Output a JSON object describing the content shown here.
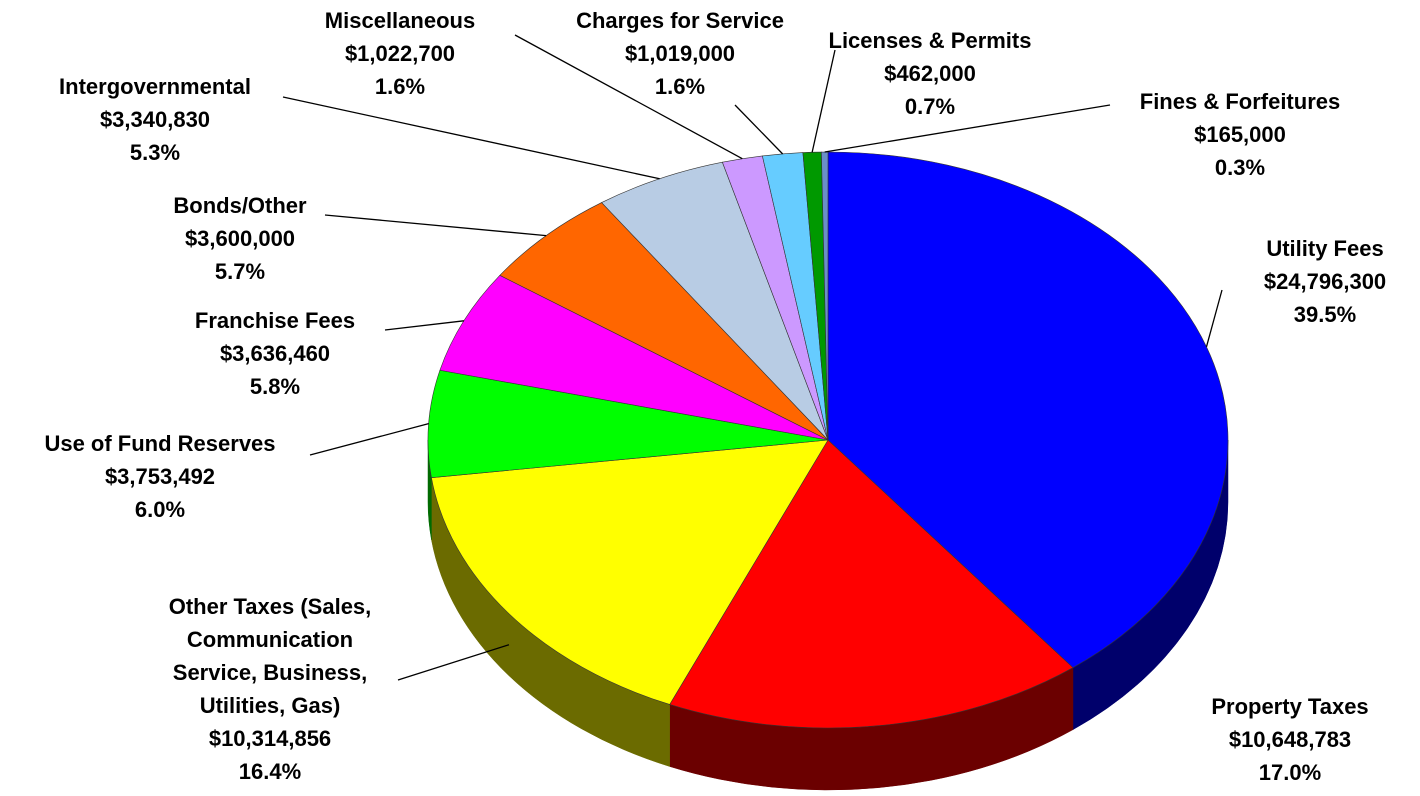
{
  "chart_data": {
    "type": "pie",
    "categories": [
      "Utility Fees",
      "Property Taxes",
      "Other Taxes (Sales,\nCommunication\nService, Business,\nUtilities, Gas)",
      "Use of Fund Reserves",
      "Franchise Fees",
      "Bonds/Other",
      "Intergovernmental",
      "Miscellaneous",
      "Charges for Service",
      "Licenses & Permits",
      "Fines & Forfeitures"
    ],
    "values": [
      24796300,
      10648783,
      10314856,
      3753492,
      3636460,
      3600000,
      3340830,
      1022700,
      1019000,
      462000,
      165000
    ],
    "value_labels": [
      "$24,796,300",
      "$10,648,783",
      "$10,314,856",
      "$3,753,492",
      "$3,636,460",
      "$3,600,000",
      "$3,340,830",
      "$1,022,700",
      "$1,019,000",
      "$462,000",
      "$165,000"
    ],
    "percent_labels": [
      "39.5%",
      "17.0%",
      "16.4%",
      "6.0%",
      "5.8%",
      "5.7%",
      "5.3%",
      "1.6%",
      "1.6%",
      "0.7%",
      "0.3%"
    ],
    "colors": [
      "#0000ff",
      "#ff0000",
      "#ffff00",
      "#00ff00",
      "#ff00ff",
      "#ff6600",
      "#b8cce4",
      "#cc99ff",
      "#66ccff",
      "#009900",
      "#6a8fc8"
    ]
  }
}
